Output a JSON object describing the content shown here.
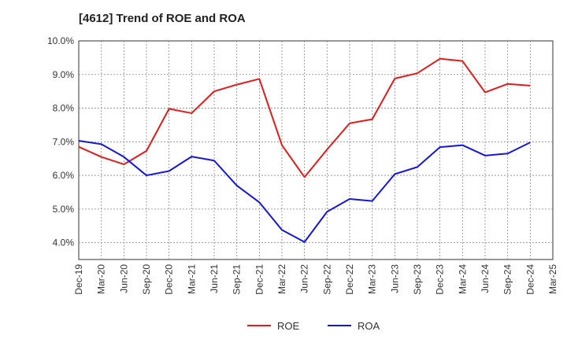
{
  "chart_data": {
    "type": "line",
    "title": "[4612]  Trend of ROE and ROA",
    "x": [
      "Dec-19",
      "Mar-20",
      "Jun-20",
      "Sep-20",
      "Dec-20",
      "Mar-21",
      "Jun-21",
      "Sep-21",
      "Dec-21",
      "Mar-22",
      "Jun-22",
      "Sep-22",
      "Dec-22",
      "Mar-23",
      "Jun-23",
      "Sep-23",
      "Dec-23",
      "Mar-24",
      "Jun-24",
      "Sep-24",
      "Dec-24",
      "Mar-25"
    ],
    "ylim": [
      3.5,
      10.0
    ],
    "yticks": [
      4.0,
      5.0,
      6.0,
      7.0,
      8.0,
      9.0,
      10.0
    ],
    "ytick_labels": [
      "4.0%",
      "5.0%",
      "6.0%",
      "7.0%",
      "8.0%",
      "9.0%",
      "10.0%"
    ],
    "grid": true,
    "legend_position": "bottom",
    "series": [
      {
        "name": "ROE",
        "color": "#e8191a",
        "values": [
          6.85,
          6.55,
          6.33,
          6.73,
          7.98,
          7.85,
          8.5,
          8.7,
          8.87,
          6.9,
          5.95,
          6.77,
          7.55,
          7.67,
          8.88,
          9.04,
          9.47,
          9.4,
          8.47,
          8.72,
          8.67,
          null
        ]
      },
      {
        "name": "ROA",
        "color": "#1515e0",
        "values": [
          7.03,
          6.93,
          6.55,
          6.0,
          6.13,
          6.56,
          6.44,
          5.7,
          5.2,
          4.38,
          4.02,
          4.92,
          5.3,
          5.24,
          6.04,
          6.25,
          6.84,
          6.9,
          6.59,
          6.65,
          6.98,
          null
        ]
      }
    ]
  }
}
